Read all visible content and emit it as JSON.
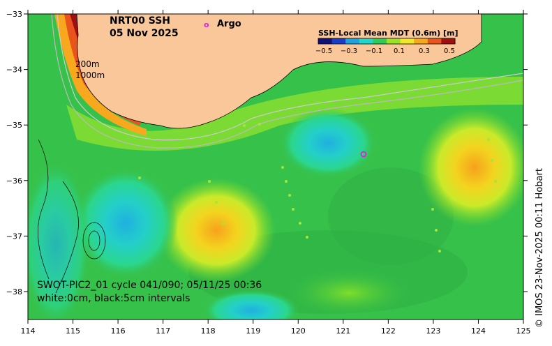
{
  "title": {
    "line1": "NRT00 SSH",
    "line2": "05 Nov 2025"
  },
  "argo_legend": {
    "symbol": "o",
    "label": "Argo"
  },
  "colorbar": {
    "title": "SSH-Local Mean MDT (0.6m) [m]",
    "tick_labels": [
      "−0.5",
      "−0.3",
      "−0.1",
      "0.1",
      "0.3",
      "0.5"
    ],
    "colors": [
      "#10107a",
      "#1a3cc8",
      "#1fa3e0",
      "#22d6c8",
      "#2ecc5a",
      "#9be22a",
      "#f2e82a",
      "#f7a81e",
      "#e8541c",
      "#a01010"
    ]
  },
  "isobath_labels": [
    "200m",
    "1000m"
  ],
  "x_axis": {
    "ticks": [
      "114",
      "115",
      "116",
      "117",
      "118",
      "119",
      "120",
      "121",
      "122",
      "123",
      "124",
      "125"
    ]
  },
  "y_axis": {
    "ticks": [
      "−33",
      "−34",
      "−35",
      "−36",
      "−37",
      "−38"
    ]
  },
  "caption": {
    "line1": "SWOT-PIC2_01 cycle 041/090; 05/11/25 00:36",
    "line2": "white:0cm, black:5cm intervals"
  },
  "credit": "© IMOS 23-Nov-2025 00:11 Hobart",
  "colors": {
    "land": "#f9c79a",
    "sea": "#36c14a",
    "argo": "#e020e0"
  }
}
